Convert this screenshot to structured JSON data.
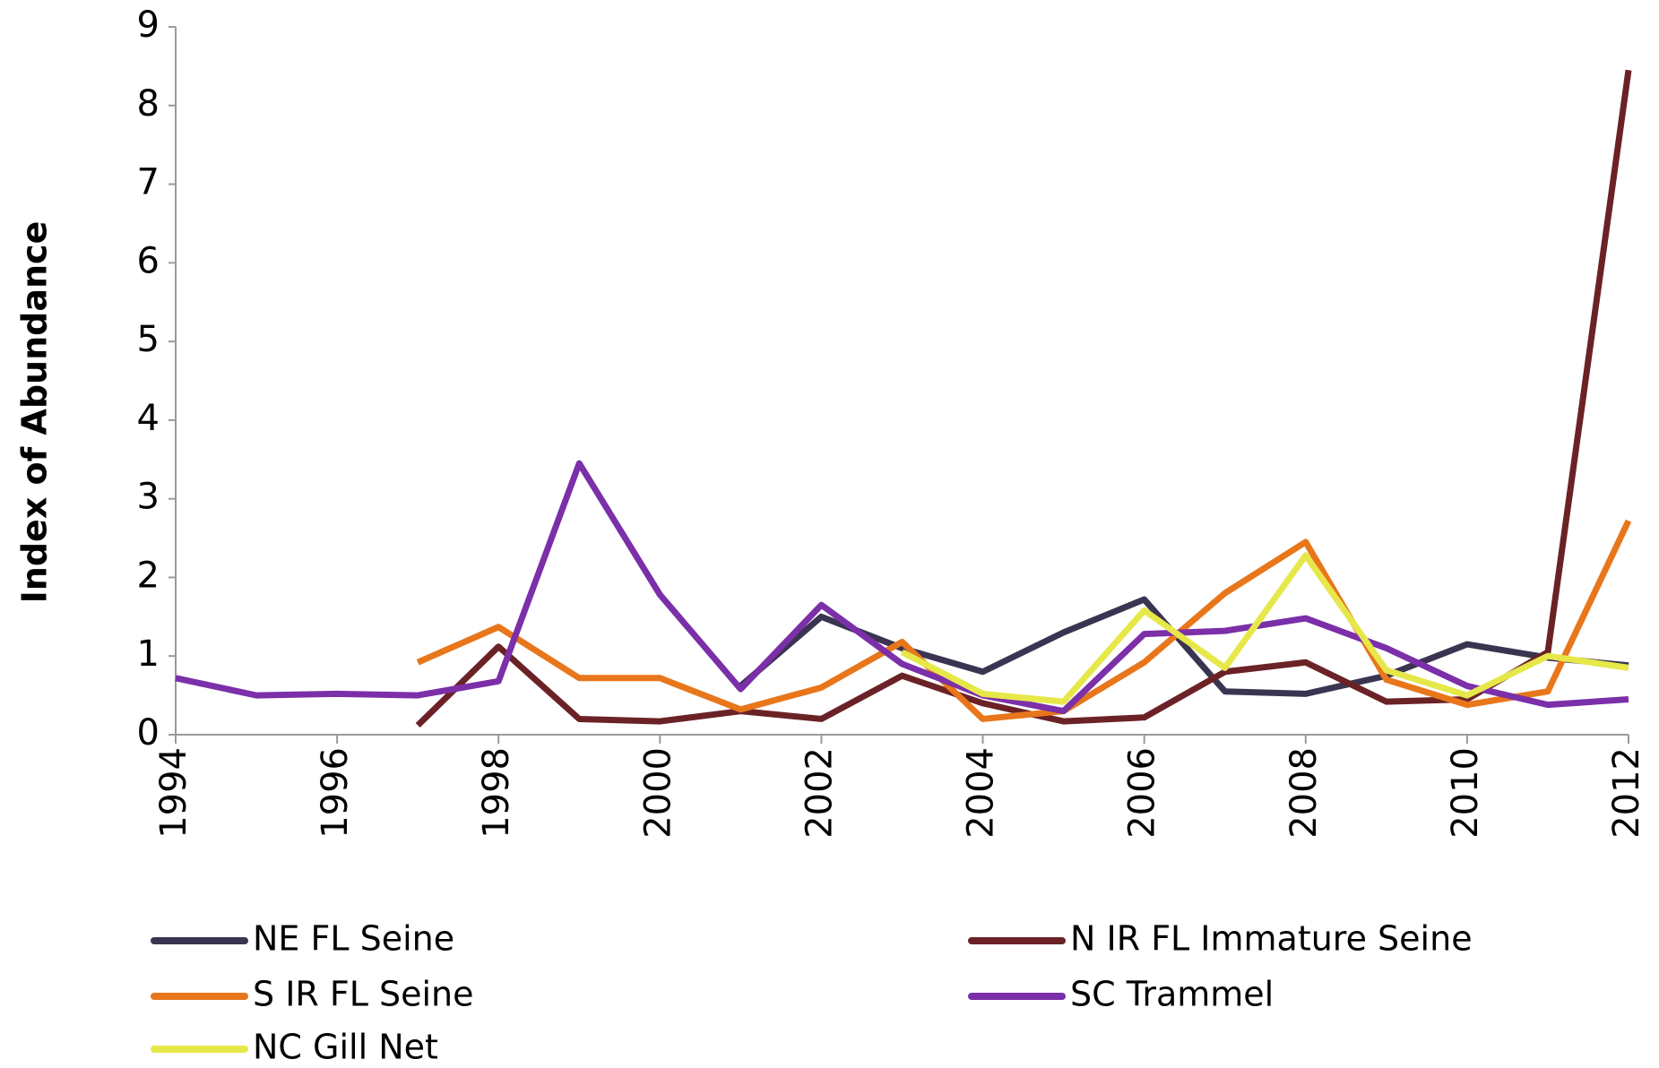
{
  "chart_data": {
    "type": "line",
    "y_label": "Index of Abundance",
    "x": [
      1994,
      1995,
      1996,
      1997,
      1998,
      1999,
      2000,
      2001,
      2002,
      2003,
      2004,
      2005,
      2006,
      2007,
      2008,
      2009,
      2010,
      2011,
      2012
    ],
    "xlim": [
      1994,
      2012
    ],
    "xticks": [
      1994,
      1996,
      1998,
      2000,
      2002,
      2004,
      2006,
      2008,
      2010,
      2012
    ],
    "ylim": [
      0,
      9
    ],
    "yticks": [
      0,
      1,
      2,
      3,
      4,
      5,
      6,
      7,
      8,
      9
    ],
    "grid": false,
    "series": [
      {
        "name": "NE FL Seine",
        "color": "#3b3451",
        "values": [
          null,
          null,
          null,
          null,
          null,
          null,
          null,
          0.62,
          1.5,
          1.1,
          0.8,
          1.3,
          1.72,
          0.55,
          0.52,
          0.75,
          1.15,
          0.98,
          0.88
        ]
      },
      {
        "name": "N IR FL Immature Seine",
        "color": "#6b2226",
        "values": [
          null,
          null,
          null,
          0.12,
          1.12,
          0.2,
          0.17,
          0.3,
          0.2,
          0.75,
          0.4,
          0.17,
          0.22,
          0.8,
          0.92,
          0.42,
          0.45,
          1.05,
          8.45
        ]
      },
      {
        "name": "S IR FL Seine",
        "color": "#e8761b",
        "values": [
          null,
          null,
          null,
          0.92,
          1.37,
          0.72,
          0.72,
          0.32,
          0.6,
          1.18,
          0.2,
          0.3,
          0.92,
          1.8,
          2.45,
          0.7,
          0.38,
          0.55,
          2.72
        ]
      },
      {
        "name": "SC Trammel",
        "color": "#7b2fa8",
        "values": [
          0.72,
          0.5,
          0.52,
          0.5,
          0.68,
          3.45,
          1.78,
          0.58,
          1.65,
          0.9,
          0.5,
          0.3,
          1.28,
          1.32,
          1.48,
          1.1,
          0.62,
          0.38,
          0.45
        ]
      },
      {
        "name": "NC Gill Net",
        "color": "#e6e84a",
        "values": [
          null,
          null,
          null,
          null,
          null,
          null,
          null,
          null,
          null,
          1.05,
          0.52,
          0.42,
          1.58,
          0.85,
          2.28,
          0.82,
          0.5,
          1.0,
          0.85
        ]
      }
    ]
  }
}
